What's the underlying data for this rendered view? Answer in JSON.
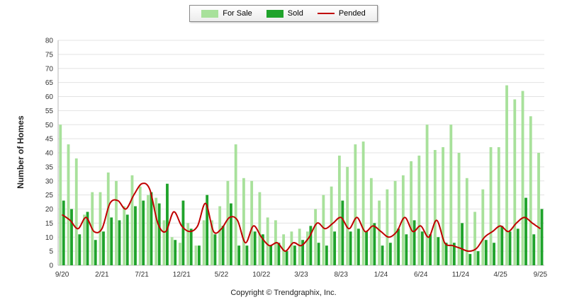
{
  "legend": {
    "items": [
      {
        "label": "For Sale",
        "color": "#a8e19b",
        "type": "bar"
      },
      {
        "label": "Sold",
        "color": "#1fa32b",
        "type": "bar"
      },
      {
        "label": "Pended",
        "color": "#c00000",
        "type": "line"
      }
    ]
  },
  "footer": {
    "copyright": "Copyright © Trendgraphix, Inc."
  },
  "chart_data": {
    "type": "bar",
    "title": "",
    "xlabel": "",
    "ylabel": "Number of Homes",
    "ylim": [
      0,
      80
    ],
    "y_ticks": [
      0,
      5,
      10,
      15,
      20,
      25,
      30,
      35,
      40,
      45,
      50,
      55,
      60,
      65,
      70,
      75,
      80
    ],
    "x_ticks_every": 5,
    "x_tick_labels": [
      "9/20",
      "2/21",
      "7/21",
      "12/21",
      "5/22",
      "10/22",
      "3/23",
      "8/23",
      "1/24",
      "6/24",
      "11/24",
      "4/25",
      "9/25"
    ],
    "grid": true,
    "legend_position": "top",
    "colors": {
      "for_sale": "#a8e19b",
      "sold": "#1fa32b",
      "pended": "#c00000",
      "grid": "#e3e3e3",
      "axis": "#b8b8b8",
      "tick_text": "#333333"
    },
    "categories": [
      "9/20",
      "10/20",
      "11/20",
      "12/20",
      "1/21",
      "2/21",
      "3/21",
      "4/21",
      "5/21",
      "6/21",
      "7/21",
      "8/21",
      "9/21",
      "10/21",
      "11/21",
      "12/21",
      "1/22",
      "2/22",
      "3/22",
      "4/22",
      "5/22",
      "6/22",
      "7/22",
      "8/22",
      "9/22",
      "10/22",
      "11/22",
      "12/22",
      "1/23",
      "2/23",
      "3/23",
      "4/23",
      "5/23",
      "6/23",
      "7/23",
      "8/23",
      "9/23",
      "10/23",
      "11/23",
      "12/23",
      "1/24",
      "2/24",
      "3/24",
      "4/24",
      "5/24",
      "6/24",
      "7/24",
      "8/24",
      "9/24",
      "10/24",
      "11/24",
      "12/24",
      "1/25",
      "2/25",
      "3/25",
      "4/25",
      "5/25",
      "6/25",
      "7/25",
      "8/25",
      "9/25"
    ],
    "series": [
      {
        "name": "For Sale",
        "values": [
          50,
          43,
          38,
          18,
          26,
          26,
          33,
          30,
          21,
          32,
          28,
          25,
          24,
          16,
          10,
          8,
          15,
          7,
          16,
          16,
          21,
          30,
          43,
          31,
          30,
          26,
          17,
          16,
          11,
          12,
          13,
          12,
          20,
          25,
          28,
          39,
          35,
          43,
          44,
          31,
          23,
          27,
          30,
          32,
          37,
          39,
          50,
          41,
          42,
          50,
          40,
          31,
          19,
          27,
          42,
          42,
          64,
          59,
          62,
          53,
          40
        ]
      },
      {
        "name": "Sold",
        "values": [
          23,
          20,
          11,
          19,
          9,
          12,
          17,
          16,
          18,
          21,
          23,
          26,
          22,
          29,
          9,
          23,
          13,
          7,
          25,
          11,
          14,
          22,
          7,
          7,
          12,
          11,
          7,
          8,
          5,
          7,
          9,
          14,
          8,
          7,
          12,
          23,
          12,
          13,
          12,
          15,
          7,
          8,
          13,
          11,
          16,
          12,
          11,
          10,
          8,
          8,
          15,
          4,
          5,
          9,
          8,
          14,
          12,
          13,
          24,
          11,
          20
        ]
      },
      {
        "name": "Pended",
        "values": [
          18,
          16,
          13,
          17,
          12,
          13,
          22,
          23,
          20,
          25,
          29,
          27,
          15,
          12,
          19,
          14,
          12,
          14,
          22,
          12,
          13,
          17,
          16,
          8,
          14,
          10,
          7,
          8,
          5,
          8,
          7,
          10,
          15,
          13,
          15,
          17,
          13,
          17,
          12,
          14,
          12,
          10,
          12,
          17,
          12,
          14,
          10,
          16,
          8,
          7,
          6,
          5,
          6,
          10,
          12,
          14,
          12,
          15,
          17,
          15,
          13
        ]
      }
    ]
  }
}
